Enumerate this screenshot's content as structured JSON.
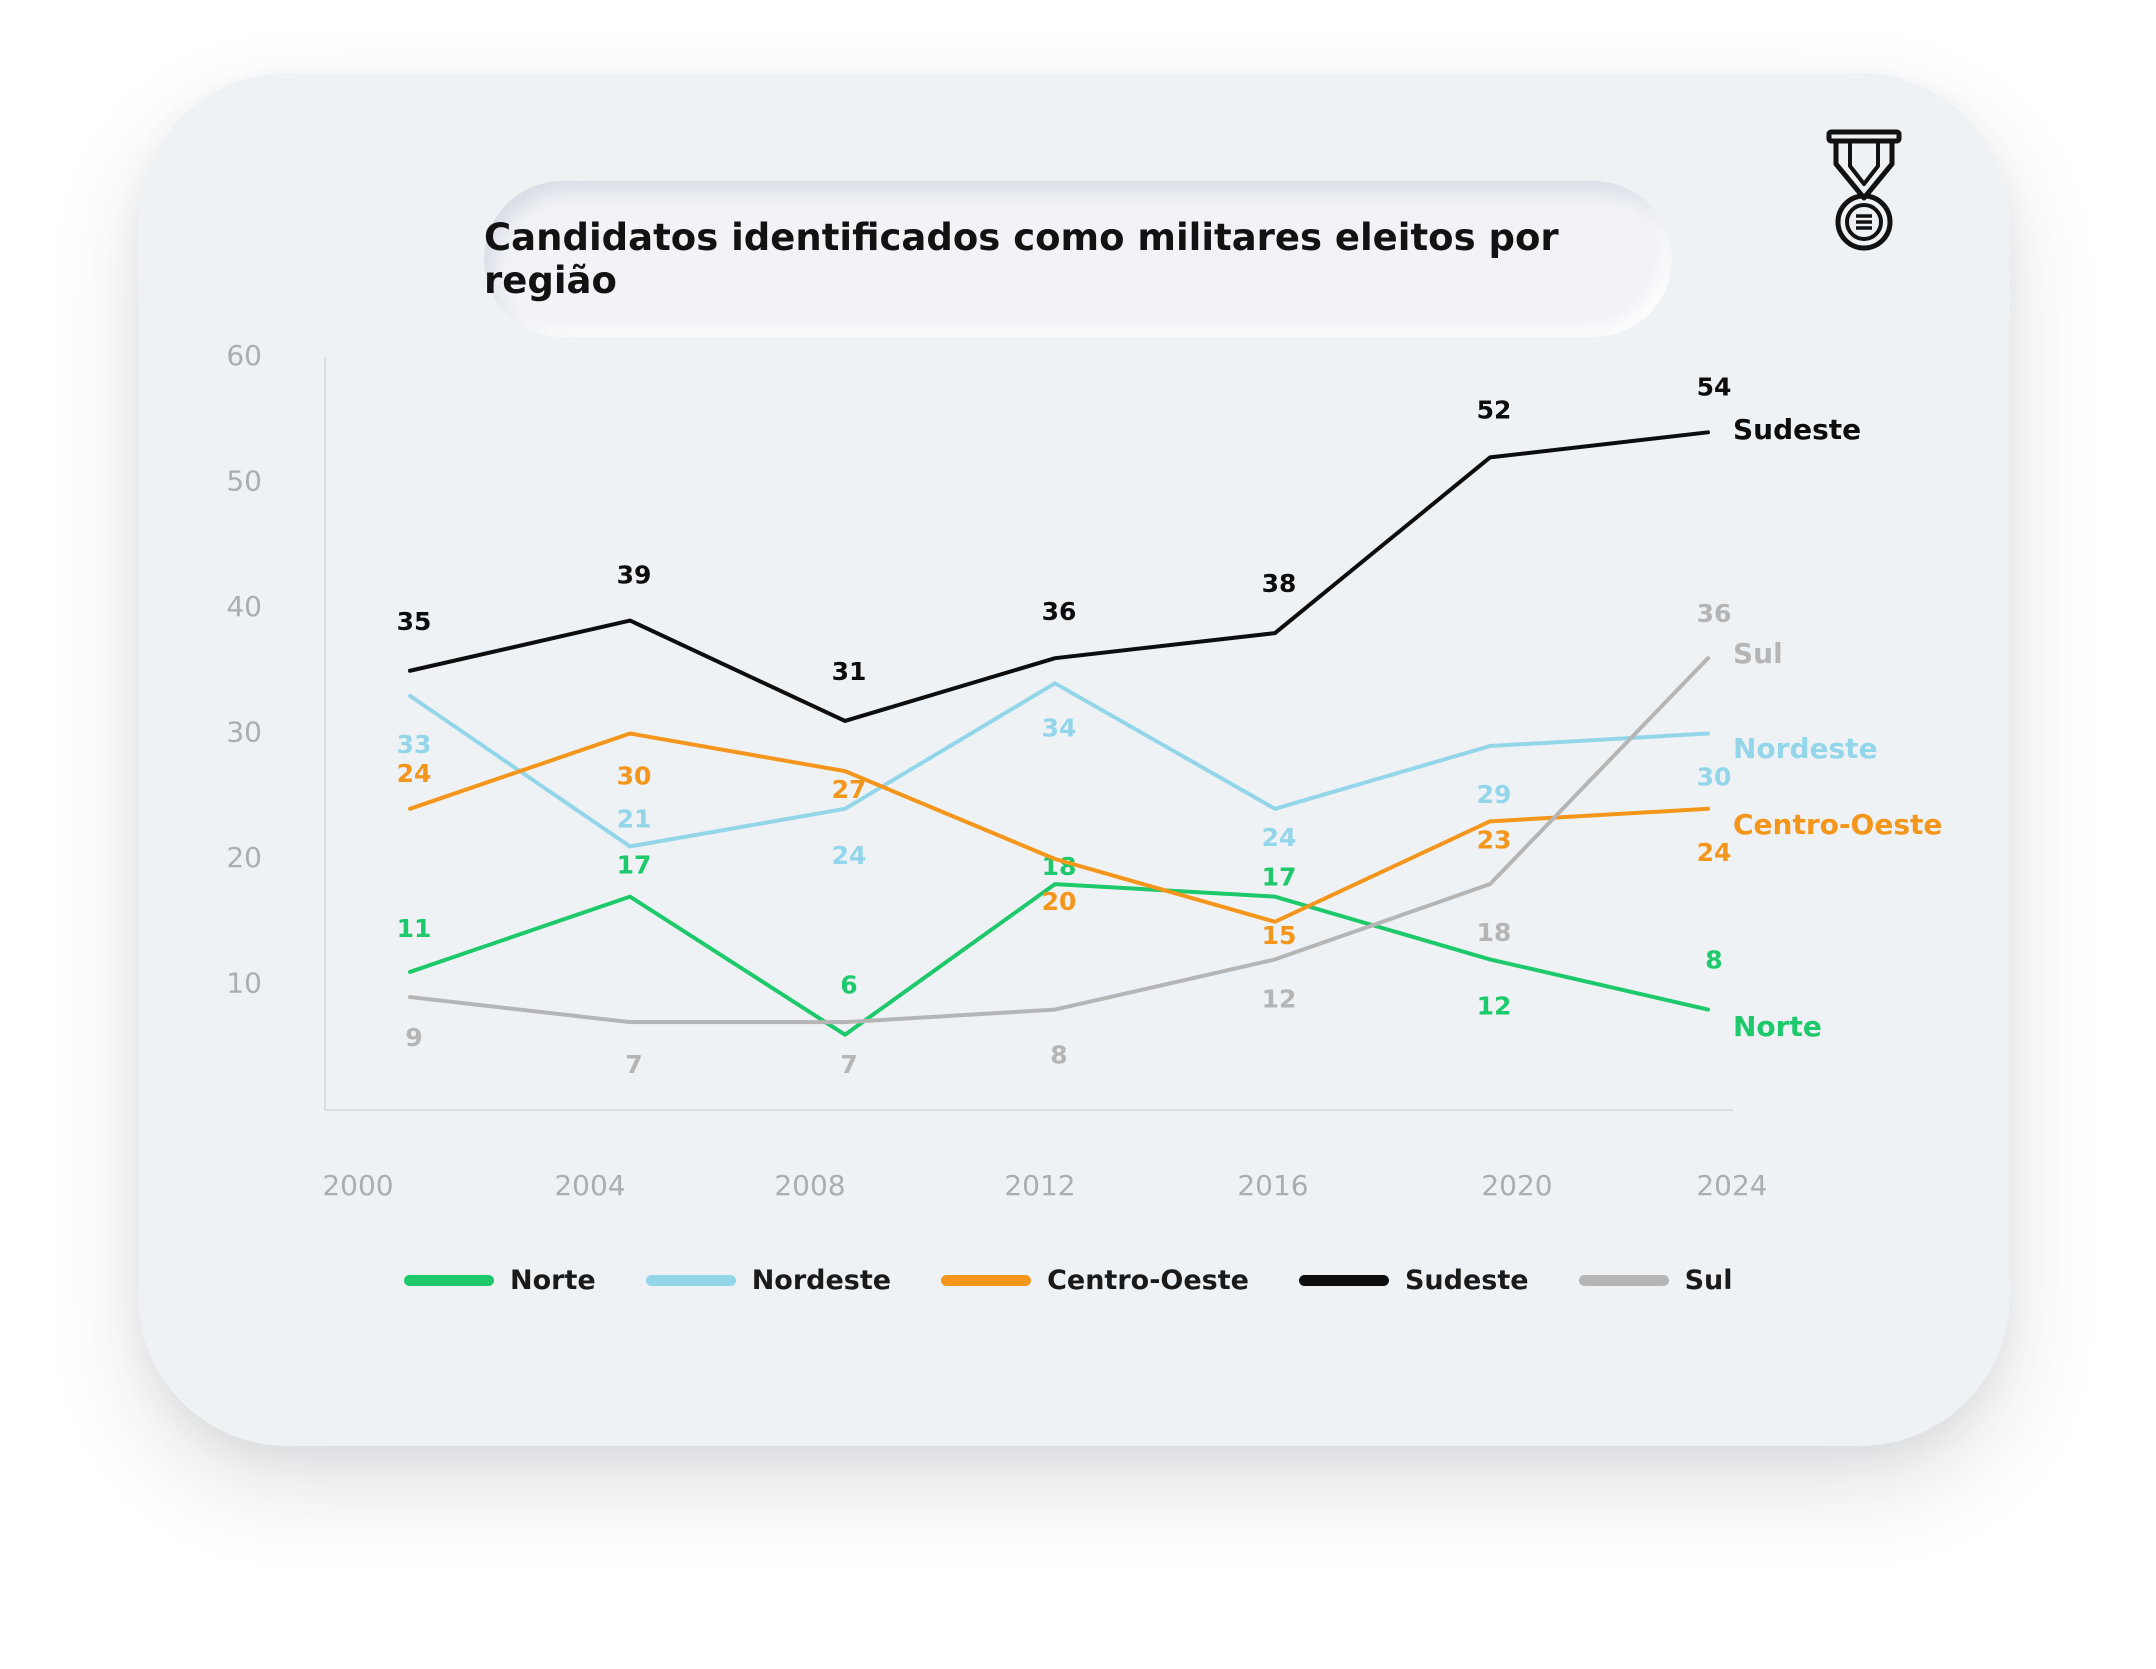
{
  "chart_data": {
    "type": "line",
    "title": "Candidatos identificados como militares eleitos por região",
    "x": [
      2000,
      2004,
      2008,
      2012,
      2016,
      2020,
      2024
    ],
    "x_tick_labels": [
      "2000",
      "2004",
      "2008",
      "2012",
      "2016",
      "2020",
      "2024"
    ],
    "y_tick_labels": [
      "10",
      "20",
      "30",
      "40",
      "50",
      "60"
    ],
    "ylim": [
      0,
      60
    ],
    "grid": false,
    "legend_position": "bottom",
    "series": [
      {
        "name": "Norte",
        "color": "#1dc96b",
        "values": [
          11,
          17,
          6,
          18,
          17,
          12,
          8
        ]
      },
      {
        "name": "Nordeste",
        "color": "#93d6ea",
        "values": [
          33,
          21,
          24,
          34,
          24,
          29,
          30
        ]
      },
      {
        "name": "Centro-Oeste",
        "color": "#f4961c",
        "values": [
          24,
          30,
          27,
          20,
          15,
          23,
          24
        ]
      },
      {
        "name": "Sudeste",
        "color": "#0d0d0d",
        "values": [
          35,
          39,
          31,
          36,
          38,
          52,
          54
        ]
      },
      {
        "name": "Sul",
        "color": "#b5b5b5",
        "values": [
          9,
          7,
          7,
          8,
          12,
          18,
          36
        ]
      }
    ]
  },
  "medal_icon": "medal-icon"
}
